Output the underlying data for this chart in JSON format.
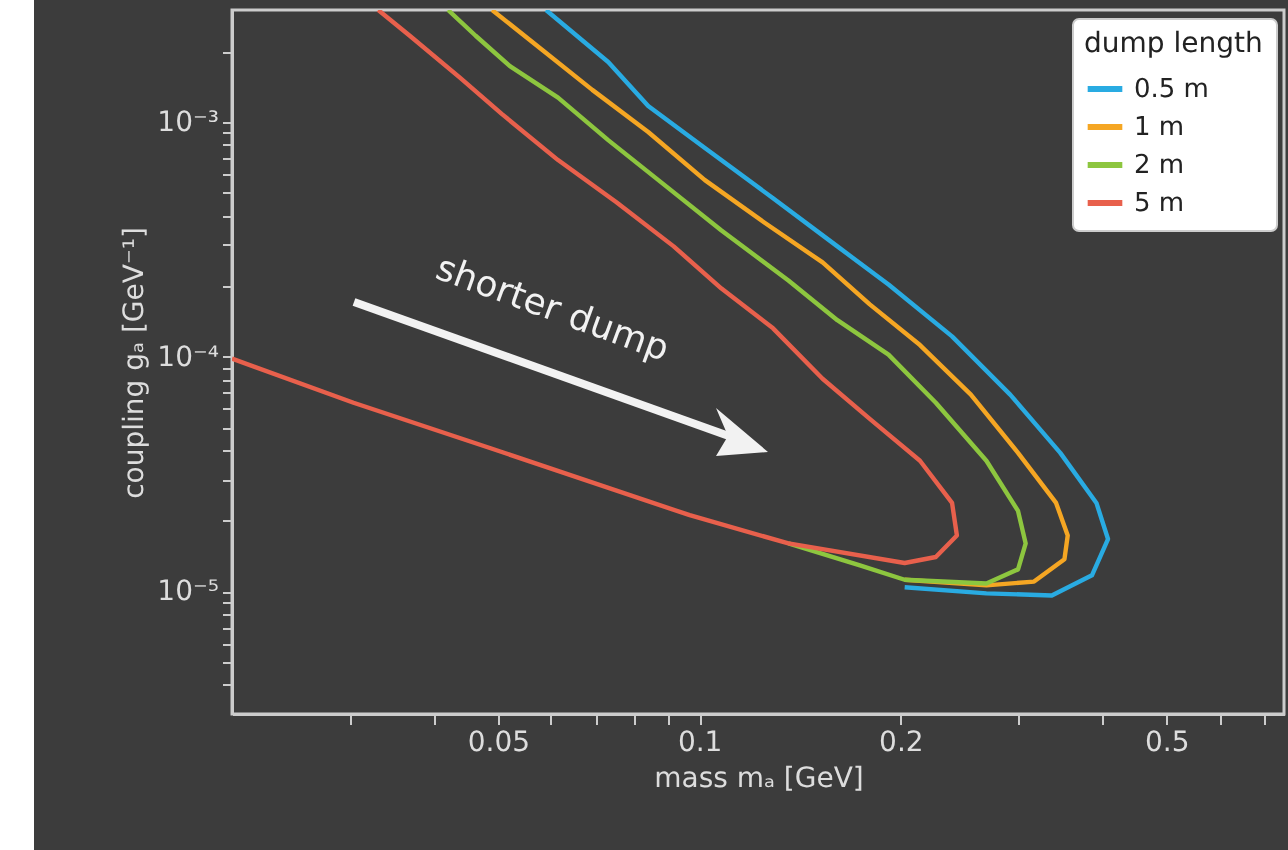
{
  "chart_data": {
    "type": "line",
    "xlabel": "mass mₐ [GeV]",
    "ylabel": "coupling gₐ [GeV⁻¹]",
    "legend_title": "dump length",
    "legend": "top right",
    "log": "xy",
    "xlim": [
      0.02,
      0.75
    ],
    "ylim": [
      3e-06,
      0.003
    ],
    "xticks": [
      {
        "value": 0.03,
        "label": null
      },
      {
        "value": 0.04,
        "label": null
      },
      0.05,
      {
        "value": 0.06,
        "label": null
      },
      {
        "value": 0.07,
        "label": null
      },
      {
        "value": 0.08,
        "label": null
      },
      {
        "value": 0.09,
        "label": null
      },
      0.1,
      0.2,
      {
        "value": 0.3,
        "label": null
      },
      {
        "value": 0.4,
        "label": null
      },
      0.5,
      {
        "value": 0.6,
        "label": null
      },
      {
        "value": 0.7,
        "label": null
      }
    ],
    "yticks": [
      {
        "value": 4e-06,
        "label": null
      },
      {
        "value": 5e-06,
        "label": null
      },
      {
        "value": 6e-06,
        "label": null
      },
      {
        "value": 7e-06,
        "label": null
      },
      {
        "value": 8e-06,
        "label": null
      },
      {
        "value": 9e-06,
        "label": null
      },
      {
        "value": 1e-05,
        "label": "10⁻⁵"
      },
      {
        "value": 2e-05,
        "label": null
      },
      {
        "value": 3e-05,
        "label": null
      },
      {
        "value": 4e-05,
        "label": null
      },
      {
        "value": 5e-05,
        "label": null
      },
      {
        "value": 6e-05,
        "label": null
      },
      {
        "value": 7e-05,
        "label": null
      },
      {
        "value": 8e-05,
        "label": null
      },
      {
        "value": 9e-05,
        "label": null
      },
      {
        "value": 0.0001,
        "label": "10⁻⁴"
      },
      {
        "value": 0.0002,
        "label": null
      },
      {
        "value": 0.0003,
        "label": null
      },
      {
        "value": 0.0004,
        "label": null
      },
      {
        "value": 0.0005,
        "label": null
      },
      {
        "value": 0.0006,
        "label": null
      },
      {
        "value": 0.0007,
        "label": null
      },
      {
        "value": 0.0008,
        "label": null
      },
      {
        "value": 0.0009,
        "label": null
      },
      {
        "value": 0.001,
        "label": "10⁻³"
      },
      {
        "value": 0.002,
        "label": null
      }
    ],
    "annotations": [
      "shorter dump"
    ],
    "series": [
      {
        "name": "0.5 m",
        "color": "#29abe2",
        "x": [
          0.203,
          0.269,
          0.337,
          0.387,
          0.409,
          0.393,
          0.347,
          0.292,
          0.239,
          0.192,
          0.161,
          0.129,
          0.102,
          0.0839,
          0.0731,
          0.059
        ],
        "values": [
          1.04e-05,
          9.8e-06,
          9.6e-06,
          1.17e-05,
          1.67e-05,
          2.38e-05,
          3.89e-05,
          6.89e-05,
          0.000122,
          0.000203,
          0.000295,
          0.000473,
          0.000774,
          0.00117,
          0.0018,
          0.003
        ]
      },
      {
        "name": "1 m",
        "color": "#f5a623",
        "x": [
          0.203,
          0.269,
          0.317,
          0.352,
          0.356,
          0.342,
          0.3,
          0.255,
          0.214,
          0.18,
          0.153,
          0.125,
          0.102,
          0.0839,
          0.0692,
          0.0582,
          0.049
        ],
        "values": [
          1.12e-05,
          1.06e-05,
          1.1e-05,
          1.37e-05,
          1.73e-05,
          2.38e-05,
          3.89e-05,
          6.89e-05,
          0.000112,
          0.000167,
          0.000252,
          0.000374,
          0.000565,
          0.000906,
          0.00137,
          0.00203,
          0.003
        ]
      },
      {
        "name": "2 m",
        "color": "#8dc63f",
        "x": [
          0.136,
          0.174,
          0.203,
          0.269,
          0.3,
          0.308,
          0.3,
          0.269,
          0.226,
          0.192,
          0.161,
          0.136,
          0.108,
          0.0869,
          0.0731,
          0.0615,
          0.0521,
          0.0463,
          0.0421
        ],
        "values": [
          1.6e-05,
          1.29e-05,
          1.12e-05,
          1.08e-05,
          1.24e-05,
          1.6e-05,
          2.2e-05,
          3.6e-05,
          6.36e-05,
          0.000102,
          0.000143,
          0.000211,
          0.000345,
          0.000565,
          0.000837,
          0.00127,
          0.00173,
          0.00233,
          0.003
        ]
      },
      {
        "name": "5 m",
        "color": "#e8604c",
        "x": [
          0.02,
          0.0304,
          0.049,
          0.0968,
          0.136,
          0.203,
          0.226,
          0.243,
          0.239,
          0.214,
          0.18,
          0.153,
          0.129,
          0.108,
          0.0916,
          0.0752,
          0.0615,
          0.0507,
          0.0439,
          0.0369,
          0.0331
        ],
        "values": [
          9.8e-05,
          6.36e-05,
          4.05e-05,
          2.11e-05,
          1.6e-05,
          1.32e-05,
          1.4e-05,
          1.73e-05,
          2.38e-05,
          3.6e-05,
          5.43e-05,
          8.05e-05,
          0.000132,
          0.000195,
          0.000295,
          0.000455,
          0.000688,
          0.00108,
          0.00154,
          0.00233,
          0.003
        ]
      }
    ]
  }
}
